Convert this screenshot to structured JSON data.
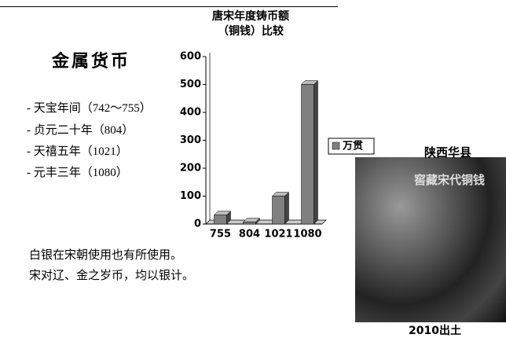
{
  "slide": {
    "heading": "金属货币",
    "list": [
      "- 天宝年间（742～755）",
      "- 贞元二十年（804）",
      "- 天禧五年（1021）",
      "- 元丰三年（1080）"
    ],
    "paragraph": [
      "白银在宋朝使用也有所使用。",
      "宋对辽、金之岁币，均以银计。"
    ],
    "photo_caption": "陕西华县",
    "photo_overlay": "窖藏宋代铜钱",
    "photo_footer": "2010出土"
  },
  "chart_data": {
    "type": "bar",
    "title": "唐宋年度铸币额（铜钱）比较",
    "categories": [
      "755",
      "804",
      "1021",
      "1080"
    ],
    "series": [
      {
        "name": "万贯",
        "color": "#808080",
        "values": [
          32,
          7,
          100,
          500
        ]
      }
    ],
    "ylim": [
      0,
      600
    ],
    "yticks": [
      0,
      100,
      200,
      300,
      400,
      500,
      600
    ],
    "legend": "right"
  }
}
